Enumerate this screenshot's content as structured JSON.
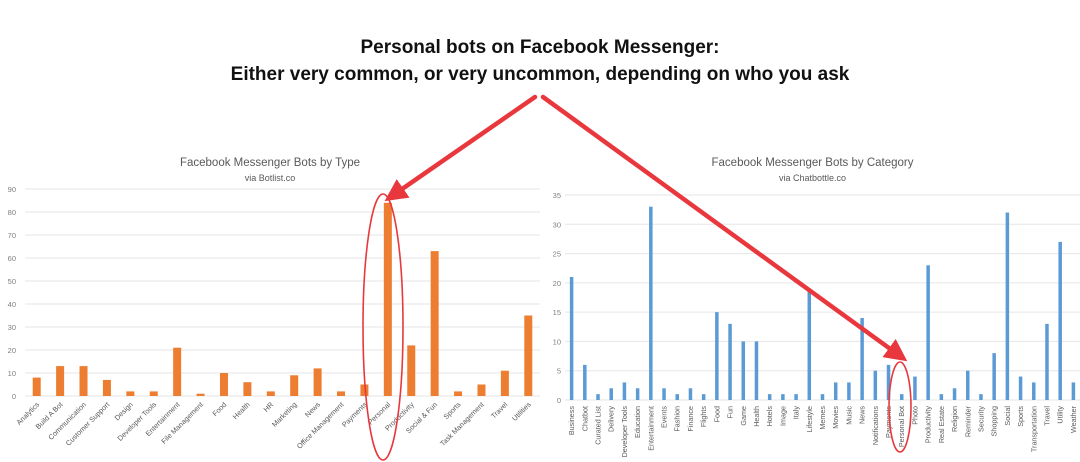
{
  "headline": {
    "line1": "Personal bots on Facebook Messenger:",
    "line2": "Either very common, or very uncommon, depending on who you ask"
  },
  "colors": {
    "left_bars": "#ED7D31",
    "right_bars": "#5B9BD5",
    "annotation": "#E8383D",
    "gridline": "#E6E6E6",
    "axis_text": "#595959"
  },
  "left_chart": {
    "title": "Facebook Messenger Bots by Type",
    "subtitle": "via Botlist.co"
  },
  "right_chart": {
    "title": "Facebook Messenger Bots by Category",
    "subtitle": "via Chatbottle.co"
  },
  "chart_data": [
    {
      "type": "bar",
      "title": "Facebook Messenger Bots by Type",
      "subtitle": "via Botlist.co",
      "xlabel": "",
      "ylabel": "",
      "ylim": [
        0,
        90
      ],
      "yticks": [
        0,
        10,
        20,
        30,
        40,
        50,
        60,
        70,
        80,
        90
      ],
      "grid": true,
      "legend": null,
      "color": "#ED7D31",
      "categories": [
        "Analytics",
        "Build A Bot",
        "Communication",
        "Customer Support",
        "Design",
        "Developer Tools",
        "Entertainment",
        "File Management",
        "Food",
        "Health",
        "HR",
        "Marketing",
        "News",
        "Office Management",
        "Payments",
        "Personal",
        "Productivity",
        "Social & Fun",
        "Sports",
        "Task Management",
        "Travel",
        "Utilities"
      ],
      "values": [
        8,
        13,
        13,
        7,
        2,
        2,
        21,
        1,
        10,
        6,
        2,
        9,
        12,
        2,
        5,
        84,
        22,
        63,
        2,
        5,
        11,
        35
      ],
      "annotations": [
        "Personal bar circled with red ellipse, pointed to by red arrow"
      ]
    },
    {
      "type": "bar",
      "title": "Facebook Messenger Bots by Category",
      "subtitle": "via Chatbottle.co",
      "xlabel": "",
      "ylabel": "",
      "ylim": [
        0,
        35
      ],
      "yticks": [
        0,
        5,
        10,
        15,
        20,
        25,
        30,
        35
      ],
      "grid": true,
      "legend": null,
      "color": "#5B9BD5",
      "categories": [
        "Business",
        "Chatbot",
        "Curated List",
        "Delivery",
        "Developer Tools",
        "Education",
        "Entertainment",
        "Events",
        "Fashion",
        "Finance",
        "Flights",
        "Food",
        "Fun",
        "Game",
        "Health",
        "Hotels",
        "Image",
        "Italy",
        "Lifestyle",
        "Memes",
        "Movies",
        "Music",
        "News",
        "Notifications",
        "Payments",
        "Personal Bot",
        "Photo",
        "Productivity",
        "Real Estate",
        "Religion",
        "Reminder",
        "Security",
        "Shopping",
        "Social",
        "Sports",
        "Transportation",
        "Travel",
        "Utility",
        "Weather"
      ],
      "values": [
        21,
        6,
        1,
        2,
        3,
        2,
        33,
        2,
        1,
        2,
        1,
        15,
        13,
        10,
        10,
        1,
        1,
        1,
        19,
        1,
        3,
        3,
        14,
        5,
        6,
        1,
        4,
        23,
        1,
        2,
        5,
        1,
        8,
        32,
        4,
        3,
        13,
        27,
        3
      ],
      "annotations": [
        "Personal Bot bar circled with red ellipse, pointed to by red arrow"
      ]
    }
  ]
}
